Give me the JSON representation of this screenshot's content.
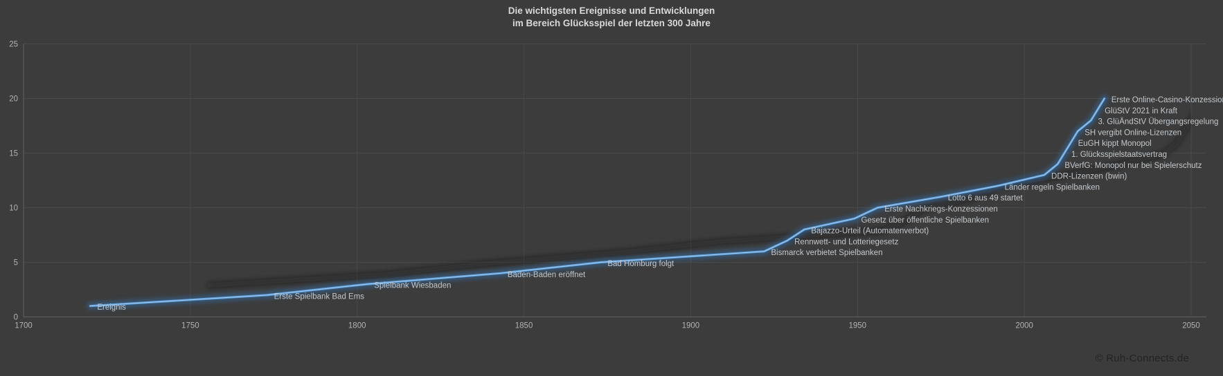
{
  "title": {
    "line1": "Die wichtigsten Ereignisse und Entwicklungen",
    "line2": "im Bereich Glücksspiel der letzten 300 Jahre"
  },
  "footer": {
    "copyright": "© Ruh-Connects.de"
  },
  "colors": {
    "background": "#3c3c3c",
    "gridline": "#4a4a4a",
    "axis_line": "#5c5c5c",
    "title_text": "#d9d9d9",
    "tick_text": "#b2b2b2",
    "label_text": "#c3c8cc",
    "line_main": "#5b9bd5",
    "line_glow": "#2f6da8",
    "line_core": "#a3c9ec",
    "shadow": "#141414",
    "copyright_text": "#232323"
  },
  "chart_data": {
    "type": "line",
    "title": "Die wichtigsten Ereignisse und Entwicklungen im Bereich Glücksspiel der letzten 300 Jahre",
    "series_name": "Ereignis",
    "xlabel": "",
    "ylabel": "",
    "xlim": [
      1700,
      2050
    ],
    "ylim": [
      0,
      25
    ],
    "x_ticks": [
      1700,
      1750,
      1800,
      1850,
      1900,
      1950,
      2000,
      2050
    ],
    "y_ticks": [
      0,
      5,
      10,
      15,
      20,
      25
    ],
    "grid": true,
    "legend": "none",
    "points": [
      {
        "year": 1720,
        "value": 1,
        "label": "Ereignis"
      },
      {
        "year": 1773,
        "value": 2,
        "label": "Erste Spielbank Bad Ems"
      },
      {
        "year": 1803,
        "value": 3,
        "label": "Spielbank Wiesbaden"
      },
      {
        "year": 1843,
        "value": 4,
        "label": "Baden-Baden eröffnet"
      },
      {
        "year": 1873,
        "value": 5,
        "label": "Bad Homburg folgt"
      },
      {
        "year": 1922,
        "value": 6,
        "label": "Bismarck verbietet Spielbanken"
      },
      {
        "year": 1929,
        "value": 7,
        "label": "Rennwett- und Lotteriegesetz"
      },
      {
        "year": 1934,
        "value": 8,
        "label": "Bajazzo-Urteil (Automatenverbot)"
      },
      {
        "year": 1949,
        "value": 9,
        "label": "Gesetz über öffentliche Spielbanken"
      },
      {
        "year": 1956,
        "value": 10,
        "label": "Erste Nachkriegs-Konzessionen"
      },
      {
        "year": 1975,
        "value": 11,
        "label": "Lotto 6 aus 49 startet"
      },
      {
        "year": 1992,
        "value": 12,
        "label": "Länder regeln Spielbanken"
      },
      {
        "year": 2006,
        "value": 13,
        "label": "DDR-Lizenzen (bwin)"
      },
      {
        "year": 2010,
        "value": 14,
        "label": "BVerfG: Monopol nur bei Spielerschutz"
      },
      {
        "year": 2012,
        "value": 15,
        "label": "1. Glücksspielstaatsvertrag"
      },
      {
        "year": 2014,
        "value": 16,
        "label": "EuGH kippt Monopol"
      },
      {
        "year": 2016,
        "value": 17,
        "label": "SH vergibt Online-Lizenzen"
      },
      {
        "year": 2020,
        "value": 18,
        "label": "3. GlüÄndStV Übergangsregelung"
      },
      {
        "year": 2022,
        "value": 19,
        "label": "GlüStV 2021 in Kraft"
      },
      {
        "year": 2024,
        "value": 20,
        "label": "Erste Online-Casino-Konzessionen"
      }
    ]
  }
}
